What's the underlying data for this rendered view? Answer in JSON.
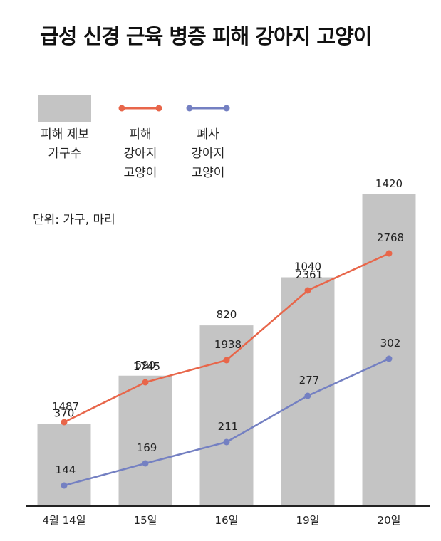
{
  "title": "급성 신경 근육 병증 피해 강아지 고양이",
  "unit_note": "단위: 가구, 마리",
  "colors": {
    "bar": "#c4c4c4",
    "affected": "#e8664a",
    "dead": "#7480c2",
    "axis": "#222222",
    "text": "#222222"
  },
  "chart_data": {
    "type": "bar",
    "categories": [
      "4월 14일",
      "15일",
      "16일",
      "19일",
      "20일"
    ],
    "series": [
      {
        "name": "피해 제보 가구수",
        "kind": "bar",
        "values": [
          370,
          590,
          820,
          1040,
          1420
        ]
      },
      {
        "name": "피해 강아지 고양이",
        "kind": "line",
        "values": [
          1487,
          1745,
          1938,
          2361,
          2768
        ]
      },
      {
        "name": "폐사 강아지 고양이",
        "kind": "line",
        "values": [
          144,
          169,
          211,
          277,
          302
        ]
      }
    ],
    "title": "급성 신경 근육 병증 피해 강아지 고양이",
    "xlabel": "",
    "ylabel": "",
    "grid": false,
    "legend_placement": "top-left"
  },
  "legend": [
    {
      "label": "피해 제보\n가구수",
      "kind": "bar"
    },
    {
      "label": "피해\n강아지\n고양이",
      "kind": "line"
    },
    {
      "label": "폐사\n강아지\n고양이",
      "kind": "line"
    }
  ]
}
